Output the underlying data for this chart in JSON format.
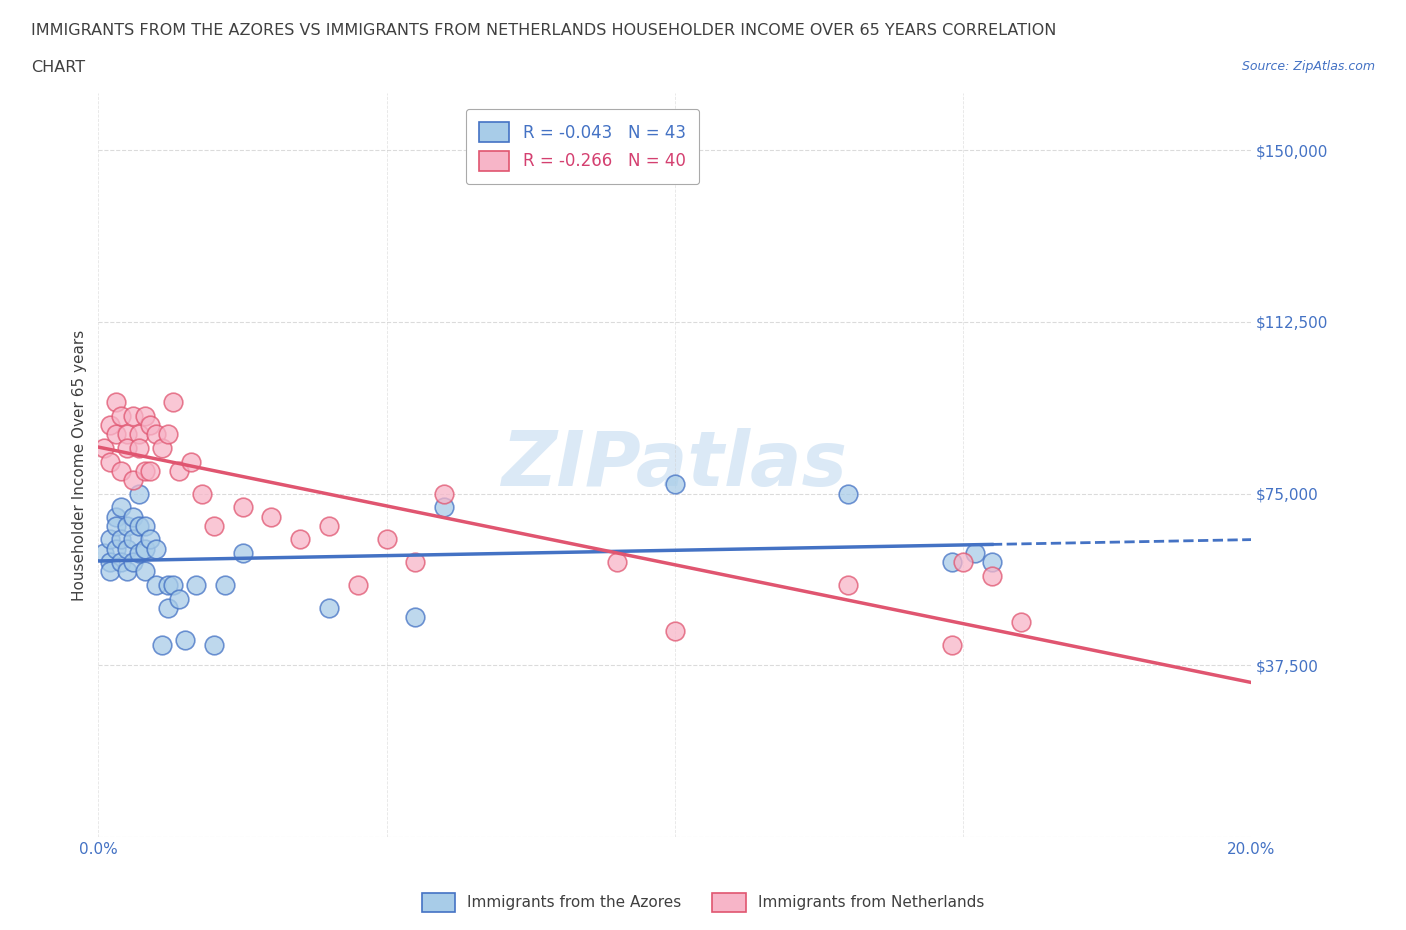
{
  "title_line1": "IMMIGRANTS FROM THE AZORES VS IMMIGRANTS FROM NETHERLANDS HOUSEHOLDER INCOME OVER 65 YEARS CORRELATION",
  "title_line2": "CHART",
  "source_text": "Source: ZipAtlas.com",
  "ylabel": "Householder Income Over 65 years",
  "xlim": [
    0.0,
    0.2
  ],
  "ylim": [
    0,
    162500
  ],
  "yticks": [
    0,
    37500,
    75000,
    112500,
    150000
  ],
  "ytick_labels": [
    "",
    "$37,500",
    "$75,000",
    "$112,500",
    "$150,000"
  ],
  "xticks": [
    0.0,
    0.05,
    0.1,
    0.15,
    0.2
  ],
  "xtick_labels": [
    "0.0%",
    "",
    "",
    "",
    "20.0%"
  ],
  "watermark": "ZIPatlas",
  "legend_label_blue": "Immigrants from the Azores",
  "legend_label_pink": "Immigrants from Netherlands",
  "blue_color": "#a8cce8",
  "pink_color": "#f7b5c8",
  "blue_edge_color": "#4472C4",
  "pink_edge_color": "#e05570",
  "blue_line_color": "#4472C4",
  "pink_line_color": "#e05570",
  "title_color": "#404040",
  "axis_color": "#4472C4",
  "pink_text_color": "#d44070",
  "blue_scatter_x": [
    0.001,
    0.002,
    0.002,
    0.002,
    0.003,
    0.003,
    0.003,
    0.004,
    0.004,
    0.004,
    0.005,
    0.005,
    0.005,
    0.006,
    0.006,
    0.006,
    0.007,
    0.007,
    0.007,
    0.008,
    0.008,
    0.008,
    0.009,
    0.01,
    0.01,
    0.011,
    0.012,
    0.012,
    0.013,
    0.014,
    0.015,
    0.017,
    0.02,
    0.022,
    0.025,
    0.04,
    0.055,
    0.06,
    0.1,
    0.13,
    0.148,
    0.152,
    0.155
  ],
  "blue_scatter_y": [
    62000,
    60000,
    65000,
    58000,
    63000,
    70000,
    68000,
    60000,
    65000,
    72000,
    58000,
    63000,
    68000,
    60000,
    65000,
    70000,
    62000,
    68000,
    75000,
    58000,
    63000,
    68000,
    65000,
    55000,
    63000,
    42000,
    55000,
    50000,
    55000,
    52000,
    43000,
    55000,
    42000,
    55000,
    62000,
    50000,
    48000,
    72000,
    77000,
    75000,
    60000,
    62000,
    60000
  ],
  "pink_scatter_x": [
    0.001,
    0.002,
    0.002,
    0.003,
    0.003,
    0.004,
    0.004,
    0.005,
    0.005,
    0.006,
    0.006,
    0.007,
    0.007,
    0.008,
    0.008,
    0.009,
    0.009,
    0.01,
    0.011,
    0.012,
    0.013,
    0.014,
    0.016,
    0.018,
    0.02,
    0.025,
    0.03,
    0.035,
    0.04,
    0.045,
    0.05,
    0.055,
    0.06,
    0.09,
    0.1,
    0.13,
    0.148,
    0.15,
    0.155,
    0.16
  ],
  "pink_scatter_y": [
    85000,
    90000,
    82000,
    88000,
    95000,
    92000,
    80000,
    88000,
    85000,
    92000,
    78000,
    88000,
    85000,
    80000,
    92000,
    90000,
    80000,
    88000,
    85000,
    88000,
    95000,
    80000,
    82000,
    75000,
    68000,
    72000,
    70000,
    65000,
    68000,
    55000,
    65000,
    60000,
    75000,
    60000,
    45000,
    55000,
    42000,
    60000,
    57000,
    47000
  ],
  "background_color": "#ffffff",
  "grid_color": "#cccccc",
  "title_fontsize": 11.5,
  "axis_label_fontsize": 11,
  "tick_fontsize": 11,
  "legend_fontsize": 12,
  "blue_intercept": 62500,
  "blue_slope": -12500,
  "pink_intercept": 87500,
  "pink_slope": -225000
}
